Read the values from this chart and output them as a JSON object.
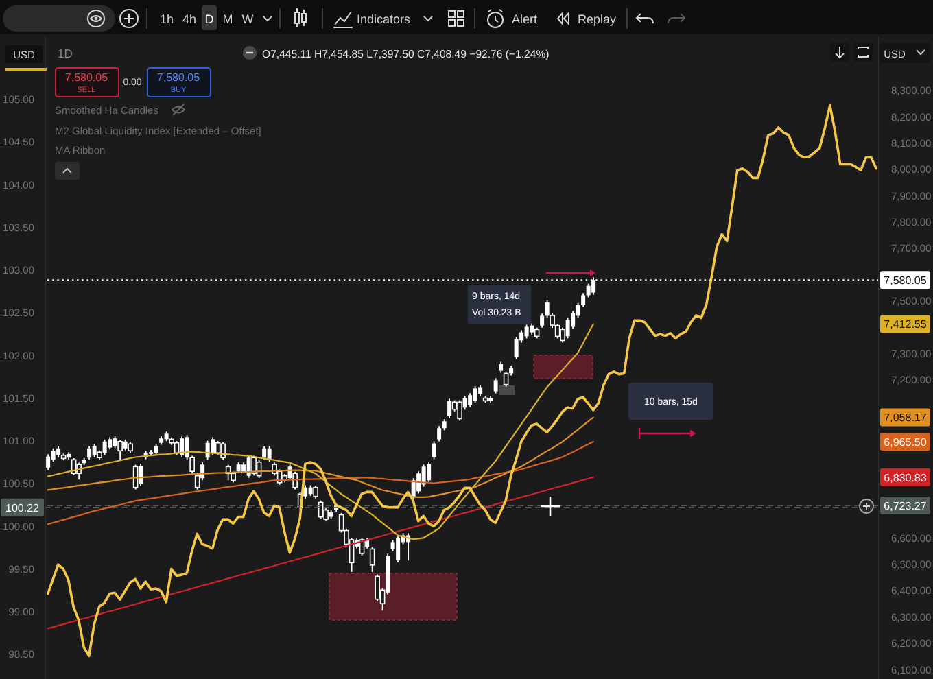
{
  "chart_data": {
    "type": "candlestick",
    "categories": [
      null,
      null,
      null,
      null,
      null,
      null,
      null,
      null,
      null,
      null,
      null,
      null,
      null,
      null,
      null,
      null,
      null,
      null,
      null,
      null,
      null,
      null,
      null,
      null,
      null,
      null,
      null,
      null,
      null,
      null,
      null,
      null,
      null,
      null,
      null,
      null,
      null,
      null,
      null,
      null,
      null,
      null,
      null,
      null,
      null,
      null,
      null,
      null,
      null,
      null,
      null,
      null,
      null,
      null,
      null,
      null,
      null,
      null,
      null,
      null,
      null,
      null,
      null,
      null,
      null,
      null,
      null,
      null,
      null,
      null,
      null,
      null,
      null,
      null,
      null,
      null,
      null,
      null,
      null,
      null,
      null,
      null,
      null,
      null,
      null,
      null,
      null,
      null,
      null,
      null,
      null,
      null,
      null,
      null,
      null,
      null,
      null,
      null,
      null,
      null,
      null,
      null,
      null,
      null,
      null,
      null,
      null,
      null,
      null,
      null,
      null,
      null,
      null,
      null,
      null,
      null,
      null,
      null,
      null,
      null,
      null,
      null,
      null,
      null,
      null,
      null,
      null,
      null,
      null,
      null,
      null,
      null,
      null,
      null,
      null,
      null,
      null,
      null,
      null,
      null,
      null,
      null,
      null,
      null,
      null,
      null,
      null,
      null,
      null,
      null,
      null,
      null,
      null,
      null,
      null,
      null,
      null,
      null,
      null,
      null,
      null,
      null
    ],
    "series": [
      {
        "type": "line",
        "axis": "y2",
        "color": "#cf2229",
        "values": [
          6256,
          6261,
          6267,
          6272,
          6278,
          6283,
          6289,
          6294,
          6299,
          6305,
          6310,
          6316,
          6321,
          6326,
          6332,
          6337,
          6343,
          6348,
          6354,
          6359,
          6364,
          6370,
          6375,
          6381,
          6386,
          6392,
          6397,
          6402,
          6408,
          6413,
          6419,
          6424,
          6429,
          6435,
          6440,
          6446,
          6451,
          6457,
          6462,
          6467,
          6473,
          6478,
          6484,
          6489,
          6494,
          6500,
          6505,
          6511,
          6516,
          6522,
          6527,
          6532,
          6538,
          6543,
          6549,
          6554,
          6560,
          6565,
          6570,
          6576,
          6581,
          6587,
          6592,
          6597,
          6603,
          6608,
          6614,
          6619,
          6625,
          6630,
          6635,
          6641,
          6646,
          6652,
          6657,
          6663,
          6668,
          6673,
          6679,
          6684,
          6690,
          6695,
          6700,
          6706,
          6711,
          6717,
          6722,
          6728,
          6733,
          6738,
          6744,
          6749,
          6755,
          6760,
          6765,
          6771,
          6776,
          6782,
          6787,
          6793,
          6798,
          6803,
          6809,
          6814,
          6820,
          6825,
          6830.83,
          null,
          null,
          null,
          null,
          null,
          null,
          null,
          null,
          null,
          null,
          null,
          null,
          null,
          null,
          null,
          null,
          null,
          null,
          null,
          null,
          null,
          null,
          null,
          null,
          null,
          null,
          null,
          null,
          null,
          null,
          null,
          null,
          null,
          null,
          null,
          null,
          null,
          null,
          null,
          null,
          null,
          null,
          null,
          null,
          null,
          null,
          null,
          null,
          null,
          null,
          null,
          null,
          null,
          null,
          null
        ]
      },
      {
        "type": "line",
        "axis": "y2",
        "color": "#d9621d",
        "values": [
          6652,
          6658,
          6663,
          6669,
          6674,
          6680,
          6685,
          6691,
          6697,
          6702,
          6707,
          6712,
          6717,
          6721,
          6726,
          6731,
          6736,
          6741,
          6744,
          6747,
          6750,
          6753,
          6756,
          6759,
          6762,
          6765,
          6768,
          6771,
          6774,
          6777,
          6780,
          6782,
          6785,
          6788,
          6791,
          6794,
          6796,
          6799,
          6802,
          6805,
          6808,
          6810,
          6813,
          6816,
          6819,
          6820,
          6820,
          6821,
          6821,
          6822,
          6823,
          6823,
          6824,
          6824,
          6825,
          6826,
          6826,
          6827,
          6827,
          6828,
          6828,
          6829,
          6829,
          6828,
          6826,
          6825,
          6823,
          6821,
          6820,
          6818,
          6816,
          6815,
          6813,
          6811,
          6810,
          6808,
          6810,
          6812,
          6814,
          6816,
          6818,
          6820,
          6823,
          6827,
          6831,
          6834,
          6838,
          6842,
          6845,
          6849,
          6852,
          6856,
          6860,
          6866,
          6872,
          6878,
          6884,
          6889,
          6895,
          6901,
          6907,
          6917,
          6926,
          6936,
          6946,
          6956,
          6965.5,
          null,
          null,
          null,
          null,
          null,
          null,
          null,
          null,
          null,
          null,
          null,
          null,
          null,
          null,
          null,
          null,
          null,
          null,
          null,
          null,
          null,
          null,
          null,
          null,
          null,
          null,
          null,
          null,
          null,
          null,
          null,
          null,
          null,
          null,
          null,
          null,
          null,
          null,
          null,
          null,
          null,
          null,
          null,
          null,
          null,
          null,
          null,
          null,
          null,
          null,
          null,
          null,
          null,
          null,
          null
        ]
      },
      {
        "type": "line",
        "axis": "y2",
        "color": "#e08f22",
        "values": [
          6782,
          6785,
          6788,
          6790,
          6793,
          6796,
          6799,
          6801,
          6804,
          6807,
          6810,
          6812,
          6815,
          6818,
          6821,
          6823,
          6826,
          6829,
          6830,
          6831,
          6832,
          6834,
          6835,
          6836,
          6837,
          6838,
          6839,
          6841,
          6842,
          6843,
          6844,
          6845,
          6846,
          6847,
          6847,
          6848,
          6849,
          6850,
          6851,
          6851,
          6852,
          6853,
          6854,
          6854,
          6855,
          6856,
          6856,
          6857,
          6857,
          6857,
          6856,
          6856,
          6855,
          6851,
          6846,
          6842,
          6837,
          6833,
          6828,
          6824,
          6819,
          6812,
          6804,
          6797,
          6789,
          6782,
          6778,
          6773,
          6769,
          6765,
          6760,
          6756,
          6755,
          6755,
          6756,
          6760,
          6764,
          6768,
          6772,
          6776,
          6780,
          6785,
          6789,
          6793,
          6802,
          6810,
          6819,
          6828,
          6836,
          6845,
          6854,
          6862,
          6871,
          6883,
          6894,
          6906,
          6918,
          6930,
          6941,
          6953,
          6965,
          6980,
          6996,
          7011,
          7027,
          7042,
          7058.17,
          null,
          null,
          null,
          null,
          null,
          null,
          null,
          null,
          null,
          null,
          null,
          null,
          null,
          null,
          null,
          null,
          null,
          null,
          null,
          null,
          null,
          null,
          null,
          null,
          null,
          null,
          null,
          null,
          null,
          null,
          null,
          null,
          null,
          null,
          null,
          null,
          null,
          null,
          null,
          null,
          null,
          null,
          null,
          null,
          null,
          null,
          null,
          null,
          null,
          null,
          null,
          null,
          null,
          null,
          null
        ]
      },
      {
        "type": "line",
        "axis": "y2",
        "color": "#dcb027",
        "values": [
          6834,
          6838,
          6843,
          6847,
          6852,
          6856,
          6860,
          6865,
          6869,
          6873,
          6877,
          6882,
          6886,
          6890,
          6894,
          6899,
          6903,
          6907,
          6909,
          6911,
          6913,
          6915,
          6917,
          6918,
          6920,
          6922,
          6924,
          6926,
          6928,
          6927,
          6925,
          6924,
          6922,
          6921,
          6919,
          6918,
          6916,
          6915,
          6913,
          6912,
          6909,
          6905,
          6902,
          6899,
          6896,
          6892,
          6889,
          6886,
          6878,
          6870,
          6861,
          6853,
          6845,
          6829,
          6814,
          6798,
          6783,
          6767,
          6754,
          6741,
          6728,
          6715,
          6702,
          6689,
          6673,
          6657,
          6642,
          6626,
          6610,
          6605,
          6600,
          6595,
          6597,
          6600,
          6612,
          6624,
          6636,
          6660,
          6684,
          6708,
          6732,
          6756,
          6779,
          6801,
          6824,
          6847,
          6869,
          6892,
          6920,
          6948,
          6976,
          7004,
          7032,
          7060,
          7088,
          7117,
          7145,
          7173,
          7195,
          7216,
          7238,
          7260,
          7281,
          7303,
          7339,
          7376,
          7412.55,
          null,
          null,
          null,
          null,
          null,
          null,
          null,
          null,
          null,
          null,
          null,
          null,
          null,
          null,
          null,
          null,
          null,
          null,
          null,
          null,
          null,
          null,
          null,
          null,
          null,
          null,
          null,
          null,
          null,
          null,
          null,
          null,
          null,
          null,
          null,
          null,
          null,
          null,
          null,
          null,
          null,
          null,
          null,
          null,
          null,
          null,
          null,
          null,
          null,
          null,
          null,
          null,
          null,
          null,
          null
        ]
      },
      {
        "type": "line",
        "axis": "y",
        "color": "#f6c744",
        "values": [
          99.21,
          99.38,
          99.55,
          99.5,
          99.37,
          99.05,
          98.9,
          98.58,
          98.48,
          98.85,
          99.06,
          99.1,
          99.21,
          99.22,
          99.14,
          99.24,
          99.34,
          99.38,
          99.27,
          99.35,
          99.26,
          99.27,
          99.24,
          99.11,
          99.5,
          99.42,
          99.43,
          99.45,
          99.71,
          99.91,
          99.79,
          99.77,
          99.74,
          99.96,
          100.08,
          100.08,
          100.03,
          100.11,
          100.11,
          100.32,
          100.41,
          100.32,
          100.16,
          100.12,
          100.24,
          100.22,
          99.93,
          99.69,
          99.85,
          100.09,
          100.73,
          100.75,
          100.73,
          100.67,
          100.53,
          100.36,
          100.25,
          100.22,
          100.19,
          100.12,
          100.25,
          100.38,
          100.4,
          100.4,
          100.32,
          100.24,
          100.22,
          100.22,
          100.22,
          100.32,
          100.4,
          100.3,
          100.06,
          100.12,
          100.03,
          100.0,
          100.06,
          100.19,
          100.22,
          100.28,
          100.36,
          100.45,
          100.45,
          100.35,
          100.25,
          100.19,
          100.08,
          100.04,
          100.17,
          100.3,
          100.59,
          100.78,
          100.99,
          101.09,
          101.18,
          101.2,
          101.15,
          101.1,
          101.17,
          101.25,
          101.34,
          101.39,
          101.38,
          101.49,
          101.51,
          101.44,
          101.36,
          101.44,
          101.65,
          101.78,
          101.81,
          101.78,
          101.79,
          102.2,
          102.41,
          102.41,
          102.39,
          102.31,
          102.23,
          102.25,
          102.23,
          102.26,
          102.2,
          102.25,
          102.28,
          102.39,
          102.47,
          102.44,
          102.6,
          102.92,
          103.27,
          103.42,
          103.34,
          103.75,
          104.17,
          104.19,
          104.15,
          104.08,
          104.08,
          104.3,
          104.58,
          104.6,
          104.67,
          104.61,
          104.58,
          104.43,
          104.35,
          104.32,
          104.33,
          104.38,
          104.43,
          104.66,
          104.93,
          104.62,
          104.24,
          104.24,
          104.24,
          104.21,
          104.17,
          104.32,
          104.32,
          104.19
        ]
      },
      {
        "type": "candlestick",
        "axis": "y2",
        "color": "#ffffff",
        "ohlc": [
          [
            6867,
            6918,
            6858,
            6909
          ],
          [
            6897,
            6940,
            6890,
            6931
          ],
          [
            6914,
            6948,
            6906,
            6940
          ],
          [
            6914,
            6920,
            6895,
            6902
          ],
          [
            6905,
            6926,
            6898,
            6919
          ],
          [
            6897,
            6903,
            6838,
            6845
          ],
          [
            6879,
            6886,
            6822,
            6845
          ],
          [
            6884,
            6904,
            6877,
            6897
          ],
          [
            6905,
            6948,
            6898,
            6940
          ],
          [
            6914,
            6957,
            6906,
            6949
          ],
          [
            6926,
            6932,
            6898,
            6905
          ],
          [
            6923,
            6974,
            6915,
            6966
          ],
          [
            6943,
            6983,
            6936,
            6975
          ],
          [
            6949,
            6986,
            6942,
            6978
          ],
          [
            6966,
            6973,
            6897,
            6931
          ],
          [
            6940,
            6974,
            6933,
            6966
          ],
          [
            6957,
            6964,
            6923,
            6931
          ],
          [
            6871,
            6878,
            6784,
            6792
          ],
          [
            6805,
            6882,
            6797,
            6874
          ],
          [
            6906,
            6931,
            6899,
            6923
          ],
          [
            6919,
            6934,
            6912,
            6926
          ],
          [
            6923,
            6957,
            6916,
            6949
          ],
          [
            6961,
            6986,
            6954,
            6978
          ],
          [
            6975,
            7004,
            6968,
            6996
          ],
          [
            6975,
            6982,
            6953,
            6961
          ],
          [
            6961,
            6968,
            6915,
            6923
          ],
          [
            6914,
            6986,
            6906,
            6978
          ],
          [
            6905,
            6991,
            6897,
            6983
          ],
          [
            6905,
            6912,
            6845,
            6853
          ],
          [
            6836,
            6843,
            6784,
            6792
          ],
          [
            6827,
            6887,
            6819,
            6879
          ],
          [
            6905,
            6969,
            6897,
            6961
          ],
          [
            6923,
            6983,
            6915,
            6975
          ],
          [
            6961,
            6968,
            6915,
            6923
          ],
          [
            6957,
            6964,
            6897,
            6905
          ],
          [
            6871,
            6878,
            6819,
            6845
          ],
          [
            6845,
            6852,
            6811,
            6819
          ],
          [
            6853,
            6887,
            6846,
            6879
          ],
          [
            6853,
            6887,
            6846,
            6879
          ],
          [
            6836,
            6913,
            6828,
            6905
          ],
          [
            6905,
            6912,
            6837,
            6845
          ],
          [
            6888,
            6895,
            6828,
            6836
          ],
          [
            6905,
            6948,
            6898,
            6940
          ],
          [
            6897,
            6948,
            6889,
            6940
          ],
          [
            6879,
            6886,
            6837,
            6845
          ],
          [
            6853,
            6860,
            6802,
            6810
          ],
          [
            6836,
            6843,
            6811,
            6819
          ],
          [
            6827,
            6879,
            6819,
            6871
          ],
          [
            6845,
            6852,
            6784,
            6792
          ],
          [
            6767,
            6774,
            6707,
            6715
          ],
          [
            6758,
            6800,
            6750,
            6792
          ],
          [
            6767,
            6800,
            6760,
            6792
          ],
          [
            6792,
            6799,
            6750,
            6758
          ],
          [
            6735,
            6742,
            6672,
            6680
          ],
          [
            6706,
            6713,
            6663,
            6671
          ],
          [
            6680,
            6705,
            6673,
            6697
          ],
          [
            6706,
            6731,
            6699,
            6723
          ],
          [
            6688,
            6695,
            6620,
            6628
          ],
          [
            6628,
            6635,
            6568,
            6576
          ],
          [
            6593,
            6600,
            6471,
            6506
          ],
          [
            6567,
            6601,
            6560,
            6593
          ],
          [
            6593,
            6600,
            6533,
            6541
          ],
          [
            6567,
            6601,
            6560,
            6593
          ],
          [
            6558,
            6565,
            6471,
            6497
          ],
          [
            6454,
            6461,
            6359,
            6367
          ],
          [
            6402,
            6409,
            6324,
            6350
          ],
          [
            6393,
            6540,
            6385,
            6532
          ],
          [
            6558,
            6592,
            6550,
            6584
          ],
          [
            6515,
            6609,
            6507,
            6601
          ],
          [
            6584,
            6618,
            6576,
            6610
          ],
          [
            6584,
            6618,
            6514,
            6610
          ],
          [
            6756,
            6827,
            6748,
            6819
          ],
          [
            6777,
            6853,
            6769,
            6845
          ],
          [
            6803,
            6879,
            6795,
            6871
          ],
          [
            6819,
            6889,
            6811,
            6881
          ],
          [
            6907,
            6967,
            6899,
            6959
          ],
          [
            6975,
            7025,
            6967,
            7017
          ],
          [
            7017,
            7051,
            7009,
            7043
          ],
          [
            7063,
            7129,
            7055,
            7121
          ],
          [
            7116,
            7123,
            7081,
            7089
          ],
          [
            7116,
            7123,
            7045,
            7053
          ],
          [
            7095,
            7139,
            7087,
            7131
          ],
          [
            7105,
            7150,
            7097,
            7142
          ],
          [
            7121,
            7176,
            7113,
            7168
          ],
          [
            7147,
            7181,
            7139,
            7173
          ],
          [
            7131,
            7139,
            7113,
            7121
          ],
          [
            7121,
            7139,
            7113,
            7131
          ],
          [
            7157,
            7207,
            7149,
            7199
          ],
          [
            7235,
            7269,
            7227,
            7261
          ],
          [
            7225,
            7232,
            7175,
            7183
          ],
          [
            7225,
            7254,
            7217,
            7246
          ],
          [
            7287,
            7363,
            7279,
            7355
          ],
          [
            7350,
            7389,
            7342,
            7381
          ],
          [
            7366,
            7410,
            7358,
            7402
          ],
          [
            7381,
            7415,
            7373,
            7407
          ],
          [
            7392,
            7399,
            7358,
            7366
          ],
          [
            7407,
            7452,
            7399,
            7444
          ],
          [
            7444,
            7504,
            7436,
            7496
          ],
          [
            7445.11,
            7454.85,
            7397.5,
            7408.49
          ],
          [
            7407,
            7414,
            7358,
            7366
          ],
          [
            7392,
            7399,
            7342,
            7350
          ],
          [
            7366,
            7436,
            7358,
            7428
          ],
          [
            7402,
            7462,
            7394,
            7454
          ],
          [
            7444,
            7493,
            7436,
            7485
          ],
          [
            7485,
            7530,
            7477,
            7522
          ],
          [
            7522,
            7566,
            7514,
            7558
          ],
          [
            7532,
            7590,
            7524,
            7580
          ],
          null,
          null,
          null,
          null,
          null,
          null,
          null,
          null,
          null,
          null,
          null,
          null,
          null,
          null,
          null,
          null,
          null,
          null,
          null,
          null,
          null,
          null,
          null,
          null,
          null,
          null,
          null,
          null,
          null,
          null,
          null,
          null,
          null,
          null,
          null,
          null,
          null,
          null,
          null,
          null,
          null,
          null,
          null,
          null,
          null,
          null,
          null,
          null,
          null,
          null,
          null,
          null,
          null,
          null,
          null
        ]
      }
    ],
    "ylim": [
      98.21,
      105.73
    ],
    "yticks": [
      {
        "value": 98.5,
        "label": "98.50"
      },
      {
        "value": 99,
        "label": "99.00"
      },
      {
        "value": 99.5,
        "label": "99.50"
      },
      {
        "value": 100,
        "label": "100.00"
      },
      {
        "value": 100.5,
        "label": "100.50"
      },
      {
        "value": 101,
        "label": "101.00"
      },
      {
        "value": 101.5,
        "label": "101.50"
      },
      {
        "value": 102,
        "label": "102.00"
      },
      {
        "value": 102.5,
        "label": "102.50"
      },
      {
        "value": 103,
        "label": "103.00"
      },
      {
        "value": 103.5,
        "label": "103.50"
      },
      {
        "value": 104,
        "label": "104.00"
      },
      {
        "value": 104.5,
        "label": "104.50"
      },
      {
        "value": 105,
        "label": "105.00"
      }
    ],
    "y2lim": [
      6064,
      8503
    ],
    "y2ticks": [
      {
        "value": 6100,
        "label": "6,100.00"
      },
      {
        "value": 6200,
        "label": "6,200.00"
      },
      {
        "value": 6300,
        "label": "6,300.00"
      },
      {
        "value": 6400,
        "label": "6,400.00"
      },
      {
        "value": 6500,
        "label": "6,500.00"
      },
      {
        "value": 6600,
        "label": "6,600.00"
      },
      {
        "value": 7200,
        "label": "7,200.00"
      },
      {
        "value": 7300,
        "label": "7,300.00"
      },
      {
        "value": 7500,
        "label": "7,500.00"
      },
      {
        "value": 7700,
        "label": "7,700.00"
      },
      {
        "value": 7800,
        "label": "7,800.00"
      },
      {
        "value": 7900,
        "label": "7,900.00"
      },
      {
        "value": 8000,
        "label": "8,000.00"
      },
      {
        "value": 8100,
        "label": "8,100.00"
      },
      {
        "value": 8200,
        "label": "8,200.00"
      },
      {
        "value": 8300,
        "label": "8,300.00"
      }
    ],
    "ref_lines": [
      {
        "axis": "y2",
        "value": 7580.05,
        "label": "7,580.05",
        "color": "#ffffff",
        "line_style": "dotted"
      },
      {
        "axis": "y",
        "value": 100.22,
        "label": "100.22",
        "color": "#4e5b58",
        "line_style": "dashed"
      },
      {
        "axis": "y2",
        "value": 6723.27,
        "label": "6,723.27",
        "color": "#4e5b58",
        "line_style": "dashed"
      }
    ],
    "annotations": [
      "1h",
      "4h",
      "D",
      "M",
      "W",
      "Indicators",
      "Alert",
      "Replay",
      "USD",
      "1D",
      "O7,445.11 H7,454.85 L7,397.50 C7,408.49 −92.76 (−1.24%)",
      "7,580.05",
      "SELL",
      "0.00",
      "7,580.05",
      "BUY",
      "Smoothed Ha Candles",
      "M2 Global Liquidity Index [Extended – Offset]",
      "MA Ribbon",
      "9 bars, 14d",
      "Vol 30.23 B",
      "10 bars, 15d",
      "USD",
      "7,412.55",
      "7,058.17",
      "6,965.50",
      "6,830.83"
    ]
  }
}
